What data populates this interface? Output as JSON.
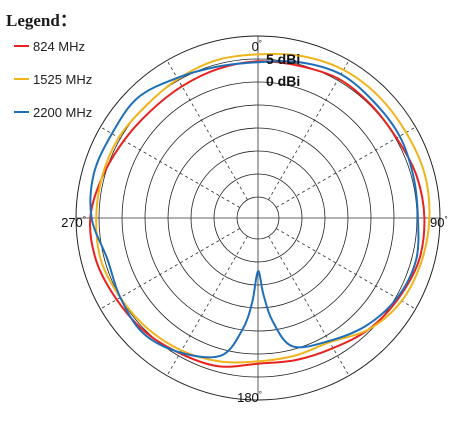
{
  "chart_data": {
    "type": "polar-line",
    "legend_title": "Legend：",
    "legend_position": "top-left",
    "angle_unit": "°",
    "angle_labels": [
      "0",
      "90",
      "180",
      "270"
    ],
    "direction": "clockwise, 0 at top",
    "ring_labels": [
      "5 dBi",
      "0 dBi"
    ],
    "radial_scale": {
      "r_min_dbi": -30,
      "r_max_dbi": 5,
      "step_dbi": 5
    },
    "grid": true,
    "series": [
      {
        "name": "824 MHz",
        "color": "#e8231f",
        "angle_deg": [
          0,
          15,
          30,
          45,
          60,
          75,
          90,
          105,
          120,
          135,
          150,
          165,
          180,
          195,
          210,
          225,
          240,
          255,
          270,
          285,
          300,
          315,
          330,
          345
        ],
        "gain_dbi": [
          -0.5,
          -0.3,
          0.4,
          0.2,
          0.2,
          1.1,
          1.6,
          1.6,
          0.6,
          -0.4,
          -1.9,
          -2.6,
          -2.9,
          -1.2,
          -0.6,
          0.3,
          0.9,
          1.8,
          1.9,
          0.4,
          -0.9,
          -1.6,
          -1.5,
          -1.0
        ]
      },
      {
        "name": "1525 MHz",
        "color": "#f0b41c",
        "angle_deg": [
          0,
          15,
          30,
          45,
          60,
          75,
          90,
          105,
          120,
          135,
          150,
          165,
          180,
          195,
          210,
          225,
          240,
          255,
          270,
          285,
          300,
          315,
          330,
          345
        ],
        "gain_dbi": [
          1.0,
          1.9,
          2.6,
          2.7,
          2.6,
          2.9,
          2.7,
          2.2,
          1.5,
          -0.4,
          -3.4,
          -3.6,
          -3.4,
          -2.3,
          -1.3,
          -0.6,
          0.0,
          0.8,
          0.6,
          0.5,
          0.4,
          -0.1,
          0.3,
          0.9
        ]
      },
      {
        "name": "2200 MHz",
        "color": "#1f6fb8",
        "angle_deg": [
          0,
          15,
          30,
          45,
          60,
          75,
          90,
          105,
          120,
          135,
          150,
          165,
          172,
          176,
          180,
          184,
          188,
          195,
          210,
          225,
          240,
          255,
          270,
          285,
          300,
          315,
          330,
          345
        ],
        "gain_dbi": [
          -0.7,
          0.5,
          1.5,
          1.1,
          1.0,
          0.4,
          0.2,
          1.0,
          0.3,
          -1.4,
          -3.7,
          -5.7,
          -12.0,
          -18.0,
          -23.0,
          -16.0,
          -10.0,
          -3.6,
          -0.8,
          0.8,
          0.0,
          -0.6,
          1.6,
          2.4,
          2.1,
          2.4,
          0.6,
          -0.5
        ]
      }
    ]
  }
}
